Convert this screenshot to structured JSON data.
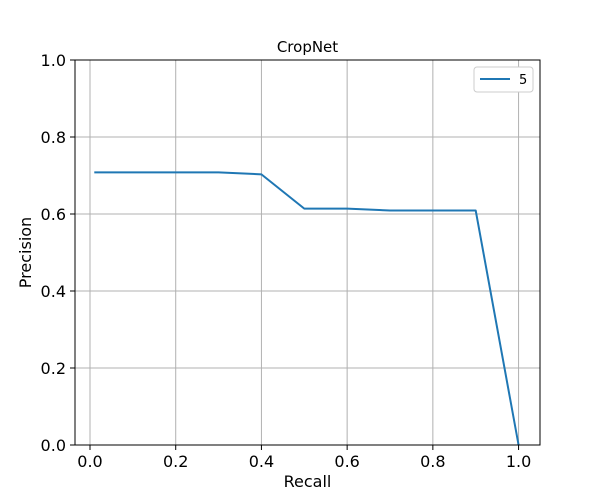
{
  "chart_data": {
    "type": "line",
    "title": "CropNet",
    "xlabel": "Recall",
    "ylabel": "Precision",
    "xlim": [
      -0.035,
      1.05
    ],
    "ylim": [
      0.0,
      1.0
    ],
    "xticks": [
      0.0,
      0.2,
      0.4,
      0.6,
      0.8,
      1.0
    ],
    "xtick_labels": [
      "0.0",
      "0.2",
      "0.4",
      "0.6",
      "0.8",
      "1.0"
    ],
    "yticks": [
      0.0,
      0.2,
      0.4,
      0.6,
      0.8,
      1.0
    ],
    "ytick_labels": [
      "0.0",
      "0.2",
      "0.4",
      "0.6",
      "0.8",
      "1.0"
    ],
    "grid": true,
    "legend_position": "top-right",
    "series": [
      {
        "name": "5",
        "color": "#1f77b4",
        "x": [
          0.01,
          0.1,
          0.2,
          0.3,
          0.4,
          0.5,
          0.6,
          0.7,
          0.8,
          0.9,
          1.0
        ],
        "y": [
          0.708,
          0.708,
          0.708,
          0.708,
          0.703,
          0.614,
          0.614,
          0.609,
          0.609,
          0.609,
          0.0
        ]
      }
    ]
  }
}
